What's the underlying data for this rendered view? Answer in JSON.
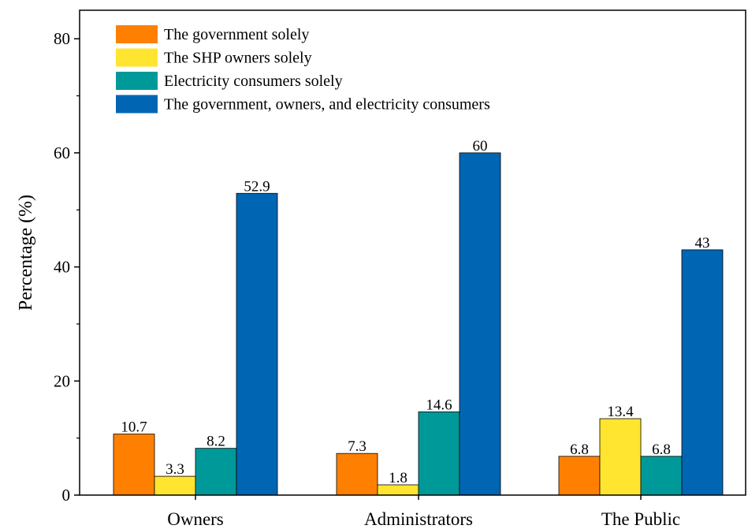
{
  "chart_data": {
    "type": "bar",
    "xlabel": "",
    "ylabel": "Percentage (%)",
    "categories": [
      "Owners",
      "Administrators",
      "The Public"
    ],
    "ylim": [
      0,
      85
    ],
    "yticks": [
      "0",
      "20",
      "40",
      "60",
      "80"
    ],
    "grid": false,
    "legend_position": "top-left",
    "series": [
      {
        "name": "The government solely",
        "color": "#ff8000",
        "values": [
          10.7,
          7.3,
          6.8
        ],
        "labels": [
          "10.7",
          "7.3",
          "6.8"
        ]
      },
      {
        "name": "The SHP owners solely",
        "color": "#ffe52f",
        "values": [
          3.3,
          1.8,
          13.4
        ],
        "labels": [
          "3.3",
          "1.8",
          "13.4"
        ]
      },
      {
        "name": "Electricity consumers solely",
        "color": "#009999",
        "values": [
          8.2,
          14.6,
          6.8
        ],
        "labels": [
          "8.2",
          "14.6",
          "6.8"
        ]
      },
      {
        "name": "The government, owners, and electricity consumers",
        "color": "#0066b3",
        "values": [
          52.9,
          60,
          43
        ],
        "labels": [
          "52.9",
          "60",
          "43"
        ]
      }
    ]
  }
}
